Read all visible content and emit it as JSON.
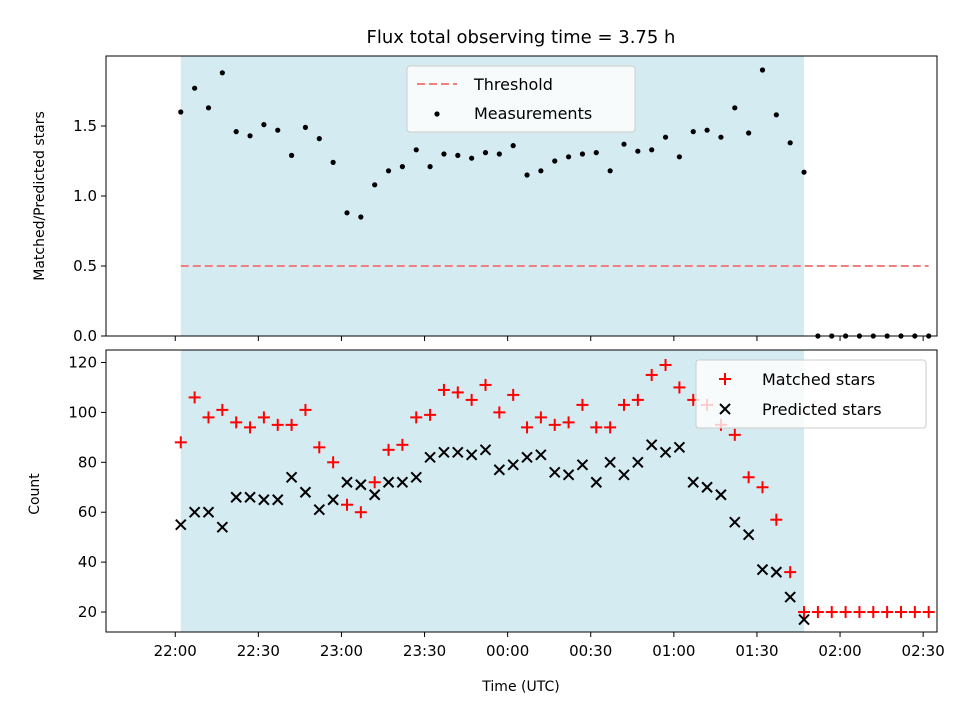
{
  "chart_data": [
    {
      "type": "scatter",
      "title": "Flux total observing time = 3.75 h",
      "xlabel": "",
      "ylabel": "Matched/Predicted stars",
      "xlim": [
        1315,
        1375
      ],
      "ylim": [
        0,
        2.0
      ],
      "yticks": [
        0.0,
        0.5,
        1.0,
        1.5
      ],
      "ytick_labels": [
        "0.0",
        "0.5",
        "1.0",
        "1.5"
      ],
      "shaded_region": {
        "x_start": 1320.4,
        "x_end": 1365.4,
        "color": "#d4ebf1"
      },
      "threshold": {
        "name": "Threshold",
        "y": 0.5,
        "x": [
          1320.4,
          1374.4
        ],
        "color": "#f08080"
      },
      "legend": [
        "Threshold",
        "Measurements"
      ],
      "legend_position": "upper-center",
      "series": [
        {
          "name": "Measurements",
          "color": "#000000",
          "marker": "dot",
          "x": [
            1320.4,
            1321.4,
            1322.4,
            1323.4,
            1324.4,
            1325.4,
            1326.4,
            1327.4,
            1328.4,
            1329.4,
            1330.4,
            1331.4,
            1332.4,
            1333.4,
            1334.4,
            1335.4,
            1336.4,
            1337.4,
            1338.4,
            1339.4,
            1340.4,
            1341.4,
            1342.4,
            1343.4,
            1344.4,
            1345.4,
            1346.4,
            1347.4,
            1348.4,
            1349.4,
            1350.4,
            1351.4,
            1352.4,
            1353.4,
            1354.4,
            1355.4,
            1356.4,
            1357.4,
            1358.4,
            1359.4,
            1360.4,
            1361.4,
            1362.4,
            1363.4,
            1364.4,
            1365.4,
            1366.4,
            1367.4,
            1368.4,
            1369.4,
            1370.4,
            1371.4,
            1372.4,
            1373.4,
            1374.4
          ],
          "y": [
            1.6,
            1.77,
            1.63,
            1.88,
            1.46,
            1.43,
            1.51,
            1.47,
            1.29,
            1.49,
            1.41,
            1.24,
            0.88,
            0.85,
            1.08,
            1.18,
            1.21,
            1.33,
            1.21,
            1.3,
            1.29,
            1.27,
            1.31,
            1.3,
            1.36,
            1.15,
            1.18,
            1.25,
            1.28,
            1.3,
            1.31,
            1.18,
            1.37,
            1.32,
            1.33,
            1.42,
            1.28,
            1.46,
            1.47,
            1.42,
            1.63,
            1.45,
            1.9,
            1.58,
            1.38,
            1.17,
            0.0,
            0.0,
            0.0,
            0.0,
            0.0,
            0.0,
            0.0,
            0.0,
            0.0
          ]
        }
      ]
    },
    {
      "type": "scatter",
      "title": "",
      "xlabel": "Time (UTC)",
      "ylabel": "Count",
      "xlim": [
        1315,
        1375
      ],
      "ylim": [
        12,
        125
      ],
      "yticks": [
        20,
        40,
        60,
        80,
        100,
        120
      ],
      "ytick_labels": [
        "20",
        "40",
        "60",
        "80",
        "100",
        "120"
      ],
      "xticks": [
        1320,
        1326,
        1332,
        1338,
        1344,
        1350,
        1356,
        1362,
        1368,
        1374
      ],
      "xtick_labels": [
        "22:00",
        "22:30",
        "23:00",
        "23:30",
        "00:00",
        "00:30",
        "01:00",
        "01:30",
        "02:00",
        "02:30"
      ],
      "shaded_region": {
        "x_start": 1320.4,
        "x_end": 1365.4,
        "color": "#d4ebf1"
      },
      "legend": [
        "Matched stars",
        "Predicted stars"
      ],
      "legend_position": "upper-right",
      "series": [
        {
          "name": "Matched stars",
          "color": "#ff0000",
          "marker": "plus",
          "x": [
            1320.4,
            1321.4,
            1322.4,
            1323.4,
            1324.4,
            1325.4,
            1326.4,
            1327.4,
            1328.4,
            1329.4,
            1330.4,
            1331.4,
            1332.4,
            1333.4,
            1334.4,
            1335.4,
            1336.4,
            1337.4,
            1338.4,
            1339.4,
            1340.4,
            1341.4,
            1342.4,
            1343.4,
            1344.4,
            1345.4,
            1346.4,
            1347.4,
            1348.4,
            1349.4,
            1350.4,
            1351.4,
            1352.4,
            1353.4,
            1354.4,
            1355.4,
            1356.4,
            1357.4,
            1358.4,
            1359.4,
            1360.4,
            1361.4,
            1362.4,
            1363.4,
            1364.4,
            1365.4,
            1366.4,
            1367.4,
            1368.4,
            1369.4,
            1370.4,
            1371.4,
            1372.4,
            1373.4,
            1374.4
          ],
          "y": [
            88,
            106,
            98,
            101,
            96,
            94,
            98,
            95,
            95,
            101,
            86,
            80,
            63,
            60,
            72,
            85,
            87,
            98,
            99,
            109,
            108,
            105,
            111,
            100,
            107,
            94,
            98,
            95,
            96,
            103,
            94,
            94,
            103,
            105,
            115,
            119,
            110,
            105,
            103,
            95,
            91,
            74,
            70,
            57,
            36,
            20,
            20,
            20,
            20,
            20,
            20,
            20,
            20,
            20,
            20
          ]
        },
        {
          "name": "Predicted stars",
          "color": "#000000",
          "marker": "x",
          "x": [
            1320.4,
            1321.4,
            1322.4,
            1323.4,
            1324.4,
            1325.4,
            1326.4,
            1327.4,
            1328.4,
            1329.4,
            1330.4,
            1331.4,
            1332.4,
            1333.4,
            1334.4,
            1335.4,
            1336.4,
            1337.4,
            1338.4,
            1339.4,
            1340.4,
            1341.4,
            1342.4,
            1343.4,
            1344.4,
            1345.4,
            1346.4,
            1347.4,
            1348.4,
            1349.4,
            1350.4,
            1351.4,
            1352.4,
            1353.4,
            1354.4,
            1355.4,
            1356.4,
            1357.4,
            1358.4,
            1359.4,
            1360.4,
            1361.4,
            1362.4,
            1363.4,
            1364.4,
            1365.4
          ],
          "y": [
            55,
            60,
            60,
            54,
            66,
            66,
            65,
            65,
            74,
            68,
            61,
            65,
            72,
            71,
            67,
            72,
            72,
            74,
            82,
            84,
            84,
            83,
            85,
            77,
            79,
            82,
            83,
            76,
            75,
            79,
            72,
            80,
            75,
            80,
            87,
            84,
            86,
            72,
            70,
            67,
            56,
            51,
            37,
            36,
            26,
            17
          ]
        }
      ]
    }
  ]
}
